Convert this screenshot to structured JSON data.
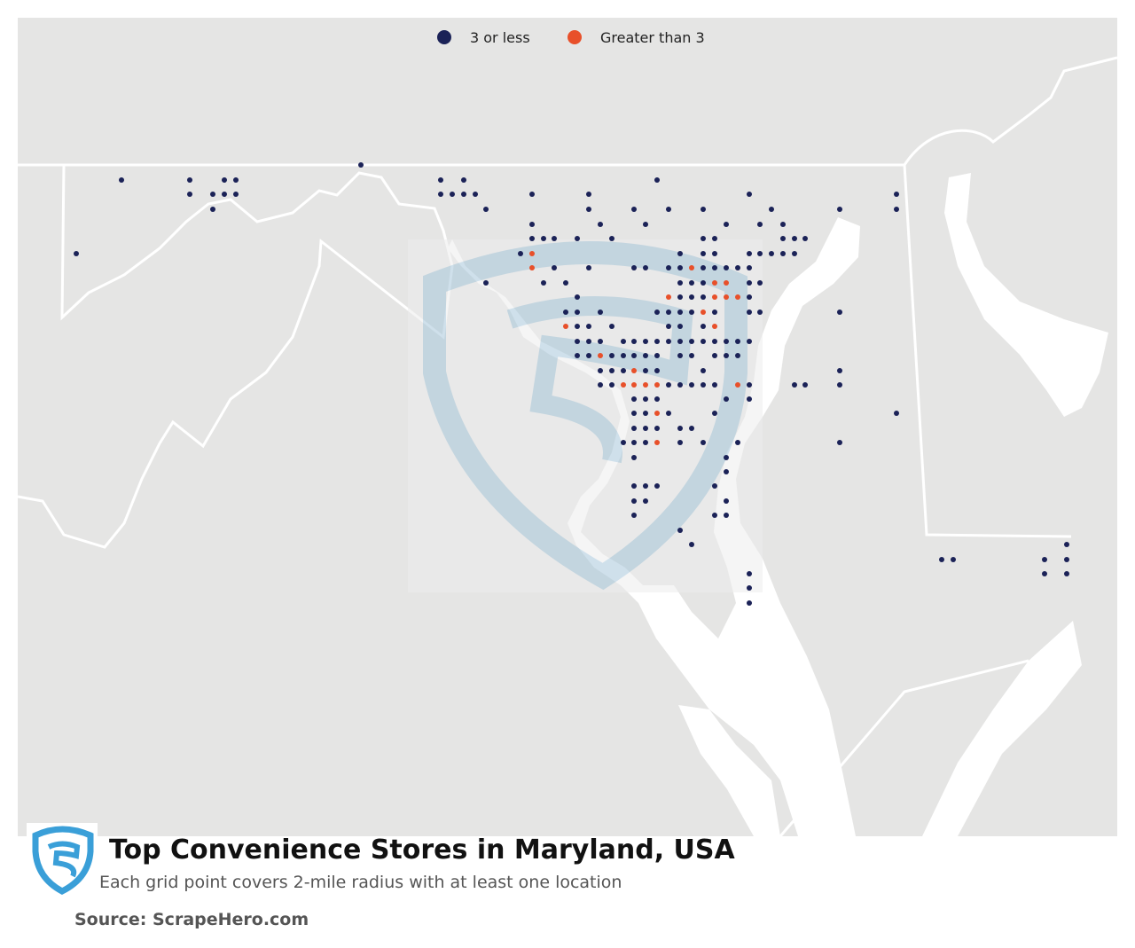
{
  "legend": {
    "items": [
      {
        "name": "3 or less",
        "color": "#1b2257"
      },
      {
        "name": "Greater than 3",
        "color": "#e8502a"
      }
    ]
  },
  "title": "Top Convenience Stores in Maryland, USA",
  "subtitle": "Each grid point covers 2-mile radius with at least one location",
  "source": "Source: ScrapeHero.com"
}
